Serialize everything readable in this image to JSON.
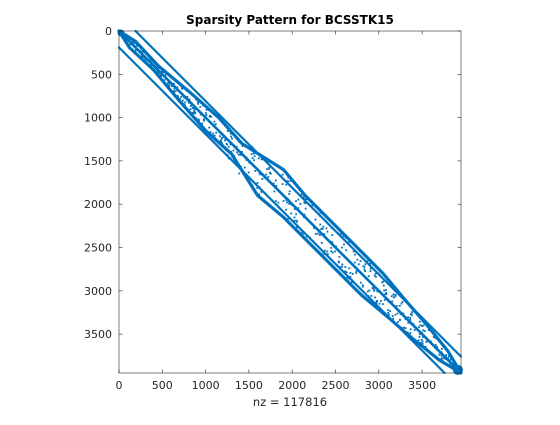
{
  "chart_data": {
    "type": "scatter",
    "title": "Sparsity Pattern for BCSSTK15",
    "xlabel": "nz = 117816",
    "ylabel": "",
    "matrix_size": 3948,
    "nnz": 117816,
    "xlim": [
      0,
      3949
    ],
    "ylim": [
      0,
      3949
    ],
    "y_reversed": true,
    "xticks": [
      0,
      500,
      1000,
      1500,
      2000,
      2500,
      3000,
      3500
    ],
    "xtick_labels": [
      "0",
      "500",
      "1000",
      "1500",
      "2000",
      "2500",
      "3000",
      "3500"
    ],
    "yticks": [
      0,
      500,
      1000,
      1500,
      2000,
      2500,
      3000,
      3500
    ],
    "ytick_labels": [
      "0",
      "500",
      "1000",
      "1500",
      "2000",
      "2500",
      "3000",
      "3500"
    ],
    "marker_color": "#0072BD",
    "band_lower_edge": [
      [
        0,
        0
      ],
      [
        120,
        190
      ],
      [
        400,
        450
      ],
      [
        700,
        810
      ],
      [
        1000,
        1150
      ],
      [
        1300,
        1420
      ],
      [
        1600,
        1900
      ],
      [
        1900,
        2150
      ],
      [
        2200,
        2450
      ],
      [
        2500,
        2750
      ],
      [
        2800,
        3050
      ],
      [
        3100,
        3300
      ],
      [
        3400,
        3560
      ],
      [
        3700,
        3800
      ],
      [
        3948,
        3948
      ]
    ],
    "band_upper_edge": [
      [
        0,
        0
      ],
      [
        190,
        120
      ],
      [
        450,
        400
      ],
      [
        810,
        700
      ],
      [
        1150,
        1000
      ],
      [
        1420,
        1300
      ],
      [
        1900,
        1600
      ],
      [
        2150,
        1900
      ],
      [
        2450,
        2200
      ],
      [
        2750,
        2500
      ],
      [
        3050,
        2800
      ],
      [
        3300,
        3100
      ],
      [
        3560,
        3400
      ],
      [
        3800,
        3700
      ],
      [
        3948,
        3948
      ]
    ],
    "inner_lines": [
      {
        "name": "main diagonal",
        "points": [
          [
            0,
            0
          ],
          [
            3948,
            3948
          ]
        ]
      },
      {
        "name": "lower sub-diagonal",
        "points": [
          [
            0,
            190
          ],
          [
            3758,
            3948
          ]
        ]
      },
      {
        "name": "upper sub-diagonal",
        "points": [
          [
            190,
            0
          ],
          [
            3948,
            3758
          ]
        ]
      }
    ],
    "grid": false
  }
}
